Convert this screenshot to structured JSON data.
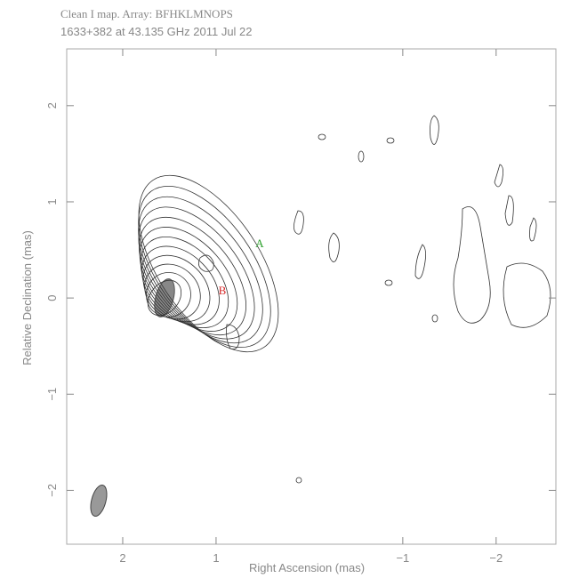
{
  "chart_data": {
    "type": "contour",
    "title": "Clean I map.  Array: BFHKLMNOPS",
    "subtitle": "1633+382 at 43.135 GHz 2011 Jul 22",
    "x_label": "Right Ascension  (mas)",
    "y_label": "Relative Declination  (mas)",
    "xlim": [
      2.6,
      -2.64
    ],
    "ylim": [
      -2.56,
      2.59
    ],
    "xticks": [
      2,
      1,
      {
        "value": -1,
        "label": "−1"
      },
      {
        "value": -2,
        "label": "−2"
      }
    ],
    "yticks": [
      2,
      1,
      0,
      {
        "value": -1,
        "label": "−1"
      },
      {
        "value": -2,
        "label": "−2"
      }
    ],
    "annotations": [
      {
        "text": "A",
        "color": "#2ca02c"
      },
      {
        "text": "B",
        "color": "#d62728"
      }
    ]
  }
}
